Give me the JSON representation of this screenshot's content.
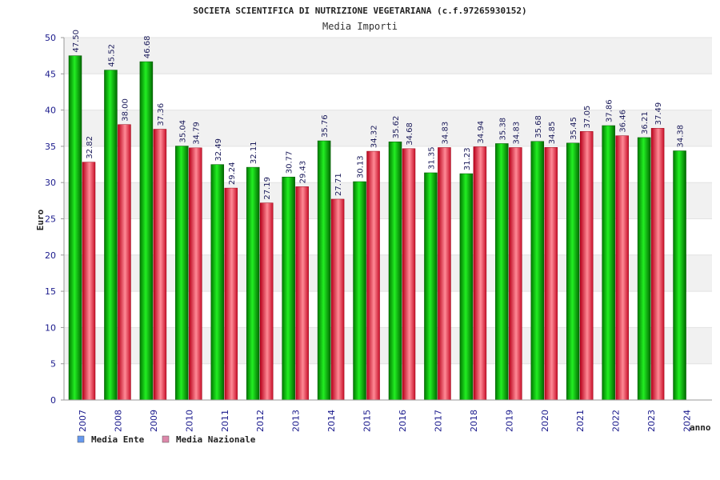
{
  "chart_data": {
    "type": "bar",
    "title": "SOCIETA SCIENTIFICA DI NUTRIZIONE VEGETARIANA (c.f.97265930152)",
    "subtitle": "Media Importi",
    "xlabel": "anno",
    "ylabel": "Euro",
    "ylim": [
      0,
      50
    ],
    "yticks": [
      0,
      5,
      10,
      15,
      20,
      25,
      30,
      35,
      40,
      45,
      50
    ],
    "grid": true,
    "legend_position": "bottom-left",
    "categories": [
      "2007",
      "2008",
      "2009",
      "2010",
      "2011",
      "2012",
      "2013",
      "2014",
      "2015",
      "2016",
      "2017",
      "2018",
      "2019",
      "2020",
      "2021",
      "2022",
      "2023",
      "2024"
    ],
    "series": [
      {
        "name": "Media Ente",
        "legend_color": "#6699ee",
        "bar_color": "#00aa00",
        "values": [
          47.5,
          45.52,
          46.68,
          35.04,
          32.49,
          32.11,
          30.77,
          35.76,
          30.13,
          35.62,
          31.35,
          31.23,
          35.38,
          35.68,
          35.45,
          37.86,
          36.21,
          34.38
        ],
        "labels": [
          "47.50",
          "45.52",
          "46.68",
          "35.04",
          "32.49",
          "32.11",
          "30.77",
          "35.76",
          "30.13",
          "35.62",
          "31.35",
          "31.23",
          "35.38",
          "35.68",
          "35.45",
          "37.86",
          "36.21",
          "34.38"
        ]
      },
      {
        "name": "Media Nazionale",
        "legend_color": "#dd88aa",
        "bar_color": "#dd2233",
        "values": [
          32.82,
          38.0,
          37.36,
          34.79,
          29.24,
          27.19,
          29.43,
          27.71,
          34.32,
          34.68,
          34.83,
          34.94,
          34.83,
          34.85,
          37.05,
          36.46,
          37.49,
          null
        ],
        "labels": [
          "32.82",
          "38.00",
          "37.36",
          "34.79",
          "29.24",
          "27.19",
          "29.43",
          "27.71",
          "34.32",
          "34.68",
          "34.83",
          "34.94",
          "34.83",
          "34.85",
          "37.05",
          "36.46",
          "37.49",
          ""
        ]
      }
    ]
  }
}
